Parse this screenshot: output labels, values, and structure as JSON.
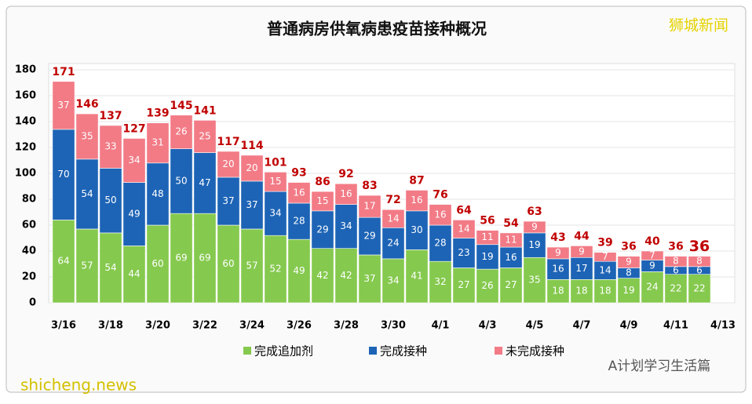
{
  "chart_data": {
    "type": "stacked_bar",
    "title": "普通病房供氧病患疫苗接种概况",
    "categories": [
      "3/16",
      null,
      "3/18",
      null,
      "3/20",
      null,
      "3/22",
      null,
      "3/24",
      null,
      "3/26",
      null,
      "3/28",
      null,
      "3/30",
      null,
      "4/1",
      null,
      "4/3",
      null,
      "4/5",
      null,
      "4/7",
      null,
      "4/9",
      null,
      "4/11",
      null,
      "4/13"
    ],
    "series": [
      {
        "name": "完成追加剂",
        "color": "#85c94e",
        "values": [
          64,
          57,
          54,
          44,
          60,
          69,
          69,
          60,
          57,
          52,
          49,
          42,
          42,
          37,
          34,
          41,
          32,
          27,
          26,
          27,
          35,
          18,
          18,
          18,
          19,
          24,
          22,
          22,
          null
        ]
      },
      {
        "name": "完成接种",
        "color": "#1d64b6",
        "values": [
          70,
          54,
          50,
          49,
          48,
          50,
          47,
          37,
          37,
          34,
          28,
          29,
          34,
          29,
          24,
          30,
          28,
          23,
          19,
          16,
          19,
          16,
          17,
          14,
          8,
          9,
          6,
          6,
          null
        ]
      },
      {
        "name": "未完成接种",
        "color": "#f27b86",
        "values": [
          37,
          35,
          33,
          34,
          31,
          26,
          25,
          20,
          20,
          15,
          16,
          15,
          16,
          17,
          14,
          16,
          16,
          14,
          11,
          11,
          9,
          9,
          9,
          7,
          9,
          7,
          8,
          8,
          null
        ]
      }
    ],
    "totals": [
      171,
      146,
      137,
      127,
      139,
      145,
      141,
      117,
      114,
      101,
      93,
      86,
      92,
      83,
      72,
      87,
      76,
      64,
      56,
      54,
      63,
      43,
      44,
      39,
      36,
      40,
      36,
      36,
      null
    ],
    "ylim": [
      0,
      180
    ],
    "yticks": [
      0,
      20,
      40,
      60,
      80,
      100,
      120,
      140,
      160,
      180
    ],
    "grid": true,
    "legend": "bottom",
    "annotations": [
      "狮城新闻",
      "shicheng.news",
      "A计划学习生活篇"
    ]
  }
}
